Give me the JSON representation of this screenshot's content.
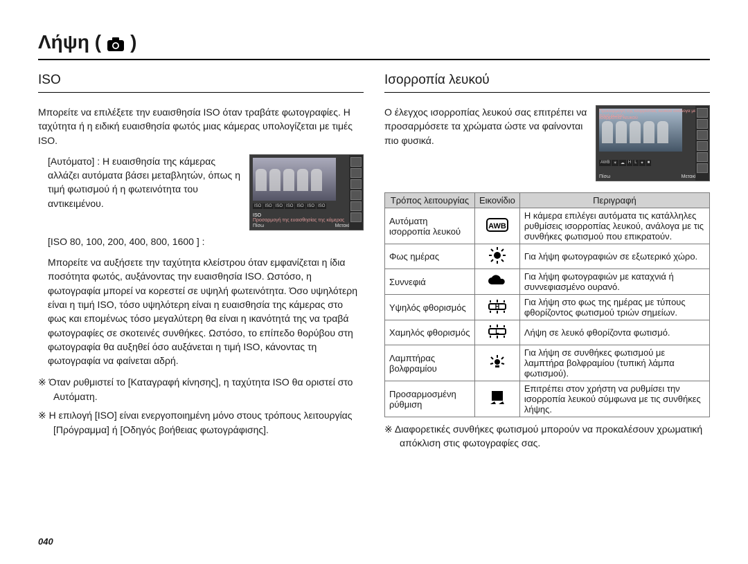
{
  "page_title_prefix": "Λήψη (",
  "page_title_suffix": " )",
  "left": {
    "heading": "ISO",
    "intro": "Μπορείτε να επιλέξετε την ευαισθησία ISO όταν τραβάτε φωτογραφίες. Η ταχύτητα ή η ειδική ευαισθησία φωτός μιας κάμερας υπολογίζεται με τιμές ISO.",
    "auto_label": "[Αυτόματο] : ",
    "auto_desc": "Η ευαισθησία της κάμερας αλλάζει αυτόματα βάσει μεταβλητών, όπως η τιμή φωτισμού ή η φωτεινότητα του αντικειμένου.",
    "iso_list": "[ISO 80, 100, 200, 400, 800, 1600 ] :",
    "iso_desc": "Μπορείτε να αυξήσετε την ταχύτητα κλείστρου όταν εμφανίζεται η ίδια ποσότητα φωτός, αυξάνοντας την ευαισθησία ISO. Ωστόσο, η φωτογραφία μπορεί να κορεστεί σε υψηλή φωτεινότητα. Όσο υψηλότερη είναι η τιμή ISO, τόσο υψηλότερη είναι η ευαισθησία της κάμερας στο φως και επομένως τόσο μεγαλύτερη θα είναι η ικανότητά της να τραβά φωτογραφίες σε σκοτεινές συνθήκες. Ωστόσο, το επίπεδο θορύβου στη φωτογραφία θα αυξηθεί όσο αυξάνεται η τιμή ISO, κάνοντας τη φωτογραφία να φαίνεται αδρή.",
    "note1": "※ Όταν ρυθμιστεί το [Καταγραφή κίνησης], η ταχύτητα ISO θα οριστεί στο Αυτόματη.",
    "note2": "※ Η επιλογή [ISO] είναι ενεργοποιημένη μόνο στους τρόπους λειτουργίας [Πρόγραμμα] ή [Οδηγός βοήθειας φωτογράφισης].",
    "thumb": {
      "caption_top": "ISO",
      "caption_mid": "Προσαρμογή της ευαισθησίας της κάμερας",
      "back": "Πίσω",
      "move": "Μετακίνηση"
    }
  },
  "right": {
    "heading": "Ισορροπία λευκού",
    "intro": "Ο έλεγχος ισορροπίας λευκού σας επιτρέπει να προσαρμόσετε τα χρώματα ώστε να φαίνονται πιο φυσικά.",
    "table": {
      "headers": [
        "Τρόπος λειτουργίας",
        "Εικονίδιο",
        "Περιγραφή"
      ],
      "rows": [
        {
          "mode": "Αυτόματη ισορροπία λευκού",
          "icon": "awb",
          "desc": "Η κάμερα επιλέγει αυτόματα τις κατάλληλες ρυθμίσεις ισορροπίας λευκού, ανάλογα με τις συνθήκες φωτισμού που επικρατούν."
        },
        {
          "mode": "Φως ημέρας",
          "icon": "sun",
          "desc": "Για λήψη φωτογραφιών σε εξωτερικό χώρο."
        },
        {
          "mode": "Συννεφιά",
          "icon": "cloud",
          "desc": "Για λήψη φωτογραφιών με καταχνιά ή συννεφιασμένο ουρανό."
        },
        {
          "mode": "Υψηλός φθορισμός",
          "icon": "fluor-h",
          "desc": "Για λήψη στο φως της ημέρας με τύπους φθορίζοντος φωτισμού τριών σημείων."
        },
        {
          "mode": "Χαμηλός φθορισμός",
          "icon": "fluor-l",
          "desc": "Λήψη σε λευκό φθορίζοντα φωτισμό."
        },
        {
          "mode": "Λαμπτήρας βολφραμίου",
          "icon": "tungsten",
          "desc": "Για λήψη σε συνθήκες φωτισμού με λαμπτήρα βολφραμίου (τυπική λάμπα φωτισμού)."
        },
        {
          "mode": "Προσαρμοσμένη ρύθμιση",
          "icon": "custom",
          "desc": "Επιτρέπει στον χρήστη να ρυθμίσει την ισορροπία λευκού σύμφωνα με τις συνθήκες λήψης."
        }
      ]
    },
    "footer": "※ Διαφορετικές συνθήκες φωτισμού μπορούν να προκαλέσουν χρωματική απόκλιση στις φωτογραφίες σας.",
    "thumb": {
      "caption_top": "Προσαρμογή της ισορροπίας λευκού ανάλογα με την πηγή φωτός",
      "caption_mid": "Ισορροπία λευκού",
      "back": "Πίσω",
      "move": "Μετακίνηση"
    }
  },
  "page_number": "040",
  "colors": {
    "text": "#1a1a1a",
    "rule": "#000000",
    "table_border": "#7a7a7a",
    "table_header_bg": "#d2d2d2",
    "thumb_bg": "#3a3a3a"
  }
}
